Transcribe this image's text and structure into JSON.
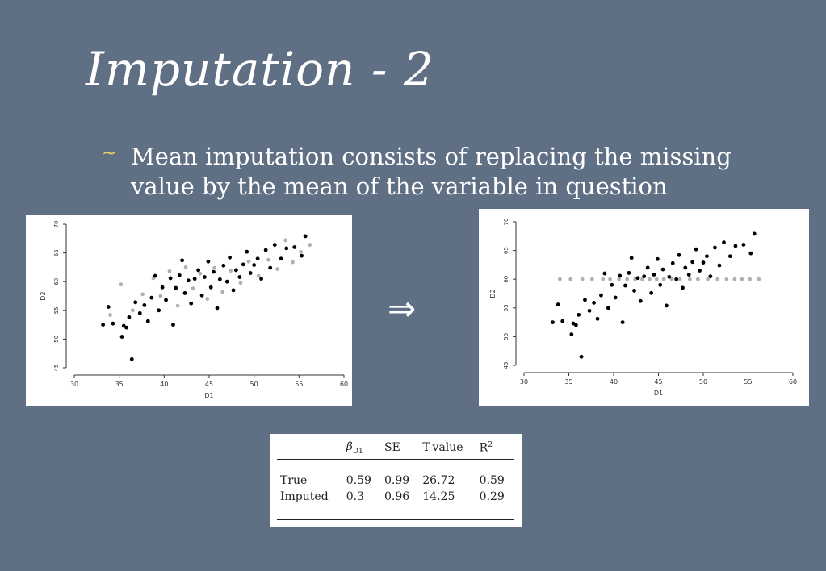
{
  "slide": {
    "title": "Imputation - 2",
    "bullet_symbol": "~",
    "bullet_text": "Mean imputation consists of replacing the missing value by the mean of the variable in question",
    "arrow_symbol": "⇒"
  },
  "table": {
    "header": {
      "col0": "",
      "beta_symbol": "β",
      "beta_subscript": "D1",
      "se": "SE",
      "t_value": "T-value",
      "r2_base": "R",
      "r2_sup": "2"
    },
    "rows": [
      {
        "label": "True",
        "beta": "0.59",
        "se": "0.99",
        "t": "26.72",
        "r2": "0.59"
      },
      {
        "label": "Imputed",
        "beta": "0.3",
        "se": "0.96",
        "t": "14.25",
        "r2": "0.29"
      }
    ]
  },
  "colors": {
    "background": "#5f6f84",
    "bullet": "#e8d160",
    "observed_points": "#000000",
    "imputed_points": "#b0b0b0"
  },
  "chart_data": [
    {
      "type": "scatter",
      "title": "",
      "xlabel": "D1",
      "ylabel": "D2",
      "xlim": [
        30,
        60
      ],
      "ylim": [
        45,
        70
      ],
      "xticks": [
        30,
        35,
        40,
        45,
        50,
        55,
        60
      ],
      "yticks": [
        45,
        50,
        55,
        60,
        65,
        70
      ],
      "series": [
        {
          "color": "#000000",
          "points": [
            [
              33.2,
              52.5
            ],
            [
              33.8,
              55.6
            ],
            [
              34.3,
              52.7
            ],
            [
              35.3,
              50.4
            ],
            [
              35.5,
              52.3
            ],
            [
              35.8,
              52.0
            ],
            [
              36.1,
              53.8
            ],
            [
              36.4,
              46.5
            ],
            [
              36.8,
              56.4
            ],
            [
              37.3,
              54.5
            ],
            [
              37.8,
              55.9
            ],
            [
              38.2,
              53.1
            ],
            [
              38.6,
              57.2
            ],
            [
              39.0,
              61.0
            ],
            [
              39.4,
              55.0
            ],
            [
              39.8,
              59.0
            ],
            [
              40.2,
              56.8
            ],
            [
              40.7,
              60.6
            ],
            [
              41.0,
              52.5
            ],
            [
              41.3,
              58.9
            ],
            [
              41.7,
              61.1
            ],
            [
              42.0,
              63.7
            ],
            [
              42.3,
              58.0
            ],
            [
              42.7,
              60.2
            ],
            [
              43.0,
              56.2
            ],
            [
              43.4,
              60.5
            ],
            [
              43.8,
              62.0
            ],
            [
              44.2,
              57.6
            ],
            [
              44.5,
              60.8
            ],
            [
              44.9,
              63.5
            ],
            [
              45.2,
              59.0
            ],
            [
              45.5,
              61.7
            ],
            [
              45.9,
              55.4
            ],
            [
              46.2,
              60.4
            ],
            [
              46.6,
              62.8
            ],
            [
              47.0,
              60.0
            ],
            [
              47.3,
              64.2
            ],
            [
              47.7,
              58.5
            ],
            [
              48.0,
              62.0
            ],
            [
              48.4,
              60.8
            ],
            [
              48.8,
              63.0
            ],
            [
              49.2,
              65.2
            ],
            [
              49.6,
              61.5
            ],
            [
              50.0,
              62.9
            ],
            [
              50.4,
              64.0
            ],
            [
              50.8,
              60.5
            ],
            [
              51.3,
              65.5
            ],
            [
              51.8,
              62.4
            ],
            [
              52.3,
              66.4
            ],
            [
              53.0,
              64.0
            ],
            [
              53.6,
              65.8
            ],
            [
              54.5,
              66.0
            ],
            [
              55.3,
              64.5
            ],
            [
              55.7,
              67.9
            ]
          ]
        },
        {
          "color": "#b0b0b0",
          "points": [
            [
              34.0,
              54.2
            ],
            [
              35.2,
              59.5
            ],
            [
              36.5,
              55.0
            ],
            [
              37.6,
              57.8
            ],
            [
              38.8,
              60.6
            ],
            [
              39.6,
              57.5
            ],
            [
              40.6,
              61.8
            ],
            [
              41.5,
              55.8
            ],
            [
              42.4,
              62.5
            ],
            [
              43.2,
              58.8
            ],
            [
              44.0,
              61.4
            ],
            [
              44.8,
              57.0
            ],
            [
              45.6,
              62.4
            ],
            [
              46.5,
              58.2
            ],
            [
              47.4,
              61.9
            ],
            [
              48.5,
              59.8
            ],
            [
              49.4,
              63.5
            ],
            [
              50.5,
              61.0
            ],
            [
              51.6,
              63.8
            ],
            [
              52.6,
              62.2
            ],
            [
              53.5,
              67.2
            ],
            [
              54.3,
              63.4
            ],
            [
              55.2,
              65.2
            ],
            [
              56.2,
              66.4
            ]
          ]
        }
      ]
    },
    {
      "type": "scatter",
      "title": "",
      "xlabel": "D1",
      "ylabel": "D2",
      "xlim": [
        30,
        60
      ],
      "ylim": [
        45,
        70
      ],
      "xticks": [
        30,
        35,
        40,
        45,
        50,
        55,
        60
      ],
      "yticks": [
        45,
        50,
        55,
        60,
        65,
        70
      ],
      "series": [
        {
          "color": "#000000",
          "points": [
            [
              33.2,
              52.5
            ],
            [
              33.8,
              55.6
            ],
            [
              34.3,
              52.7
            ],
            [
              35.3,
              50.4
            ],
            [
              35.5,
              52.3
            ],
            [
              35.8,
              52.0
            ],
            [
              36.1,
              53.8
            ],
            [
              36.4,
              46.5
            ],
            [
              36.8,
              56.4
            ],
            [
              37.3,
              54.5
            ],
            [
              37.8,
              55.9
            ],
            [
              38.2,
              53.1
            ],
            [
              38.6,
              57.2
            ],
            [
              39.0,
              61.0
            ],
            [
              39.4,
              55.0
            ],
            [
              39.8,
              59.0
            ],
            [
              40.2,
              56.8
            ],
            [
              40.7,
              60.6
            ],
            [
              41.0,
              52.5
            ],
            [
              41.3,
              58.9
            ],
            [
              41.7,
              61.1
            ],
            [
              42.0,
              63.7
            ],
            [
              42.3,
              58.0
            ],
            [
              42.7,
              60.2
            ],
            [
              43.0,
              56.2
            ],
            [
              43.4,
              60.5
            ],
            [
              43.8,
              62.0
            ],
            [
              44.2,
              57.6
            ],
            [
              44.5,
              60.8
            ],
            [
              44.9,
              63.5
            ],
            [
              45.2,
              59.0
            ],
            [
              45.5,
              61.7
            ],
            [
              45.9,
              55.4
            ],
            [
              46.2,
              60.4
            ],
            [
              46.6,
              62.8
            ],
            [
              47.0,
              60.0
            ],
            [
              47.3,
              64.2
            ],
            [
              47.7,
              58.5
            ],
            [
              48.0,
              62.0
            ],
            [
              48.4,
              60.8
            ],
            [
              48.8,
              63.0
            ],
            [
              49.2,
              65.2
            ],
            [
              49.6,
              61.5
            ],
            [
              50.0,
              62.9
            ],
            [
              50.4,
              64.0
            ],
            [
              50.8,
              60.5
            ],
            [
              51.3,
              65.5
            ],
            [
              51.8,
              62.4
            ],
            [
              52.3,
              66.4
            ],
            [
              53.0,
              64.0
            ],
            [
              53.6,
              65.8
            ],
            [
              54.5,
              66.0
            ],
            [
              55.3,
              64.5
            ],
            [
              55.7,
              67.9
            ]
          ]
        },
        {
          "color": "#b0b0b0",
          "points": [
            [
              34.0,
              60
            ],
            [
              35.2,
              60
            ],
            [
              36.5,
              60
            ],
            [
              37.6,
              60
            ],
            [
              38.8,
              60
            ],
            [
              39.6,
              60
            ],
            [
              40.6,
              60
            ],
            [
              41.5,
              60
            ],
            [
              42.4,
              60
            ],
            [
              43.2,
              60
            ],
            [
              44.0,
              60
            ],
            [
              44.8,
              60
            ],
            [
              45.6,
              60
            ],
            [
              46.5,
              60
            ],
            [
              47.4,
              60
            ],
            [
              48.5,
              60
            ],
            [
              49.4,
              60
            ],
            [
              50.5,
              60
            ],
            [
              51.6,
              60
            ],
            [
              52.6,
              60
            ],
            [
              53.5,
              60
            ],
            [
              54.3,
              60
            ],
            [
              55.2,
              60
            ],
            [
              56.2,
              60
            ]
          ]
        }
      ]
    }
  ]
}
